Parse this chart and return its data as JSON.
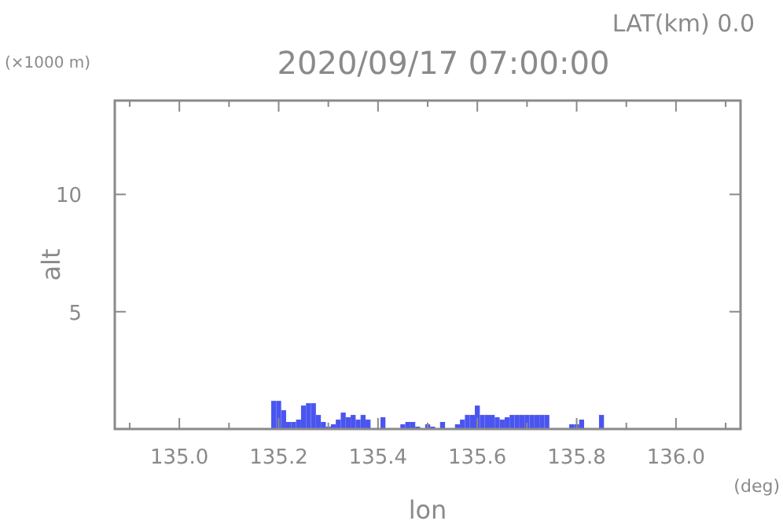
{
  "chart_data": {
    "type": "bar",
    "title": "2020/09/17 07:00:00",
    "subtitle": "LAT(km) 0.0",
    "xlabel": "lon",
    "ylabel": "alt",
    "annotations": [
      "(×1000 m)",
      "(deg)"
    ],
    "x": [
      135.19,
      135.2,
      135.21,
      135.22,
      135.23,
      135.24,
      135.25,
      135.26,
      135.27,
      135.28,
      135.29,
      135.3,
      135.31,
      135.32,
      135.33,
      135.34,
      135.35,
      135.36,
      135.37,
      135.38,
      135.41,
      135.45,
      135.46,
      135.47,
      135.48,
      135.5,
      135.51,
      135.53,
      135.56,
      135.57,
      135.58,
      135.59,
      135.6,
      135.61,
      135.62,
      135.63,
      135.64,
      135.65,
      135.66,
      135.67,
      135.68,
      135.69,
      135.7,
      135.71,
      135.72,
      135.73,
      135.74,
      135.79,
      135.8,
      135.81,
      135.85
    ],
    "values": [
      1.2,
      1.2,
      0.8,
      0.3,
      0.3,
      0.4,
      1.0,
      1.1,
      1.1,
      0.6,
      0.3,
      0.1,
      0.2,
      0.4,
      0.7,
      0.5,
      0.6,
      0.4,
      0.6,
      0.4,
      0.5,
      0.2,
      0.3,
      0.3,
      0.1,
      0.2,
      0.1,
      0.3,
      0.2,
      0.4,
      0.6,
      0.6,
      1.0,
      0.6,
      0.6,
      0.6,
      0.5,
      0.4,
      0.5,
      0.6,
      0.6,
      0.6,
      0.6,
      0.6,
      0.6,
      0.6,
      0.6,
      0.2,
      0.2,
      0.4,
      0.6
    ],
    "color": "#4a55f0",
    "xlim": [
      134.87,
      136.13
    ],
    "xticks": [
      {
        "value": 134.9,
        "label": null
      },
      {
        "value": 135,
        "label": "135.0"
      },
      {
        "value": 135.1,
        "label": null
      },
      {
        "value": 135.2,
        "label": "135.2"
      },
      {
        "value": 135.3,
        "label": null
      },
      {
        "value": 135.4,
        "label": "135.4"
      },
      {
        "value": 135.5,
        "label": null
      },
      {
        "value": 135.6,
        "label": "135.6"
      },
      {
        "value": 135.7,
        "label": null
      },
      {
        "value": 135.8,
        "label": "135.8"
      },
      {
        "value": 135.9,
        "label": null
      },
      {
        "value": 136,
        "label": "136.0"
      },
      {
        "value": 136.1,
        "label": null
      }
    ],
    "ylim": [
      0,
      14
    ],
    "yticks": [
      5,
      10
    ],
    "grid": false
  }
}
